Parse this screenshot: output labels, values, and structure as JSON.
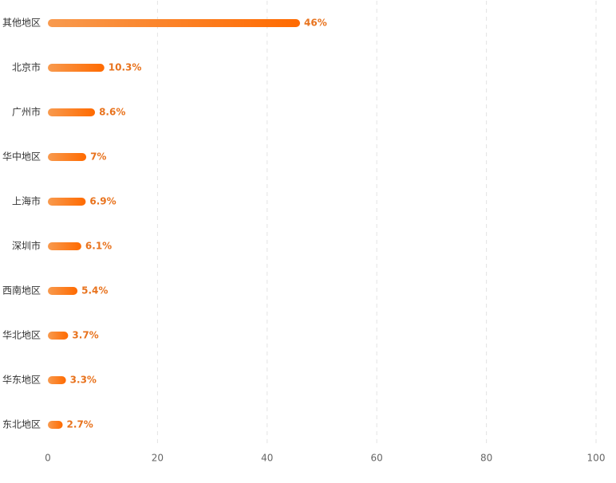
{
  "chart_data": {
    "type": "hbar",
    "categories": [
      "其他地区",
      "北京市",
      "广州市",
      "华中地区",
      "上海市",
      "深圳市",
      "西南地区",
      "华北地区",
      "华东地区",
      "东北地区"
    ],
    "values": [
      46,
      10.3,
      8.6,
      7,
      6.9,
      6.1,
      5.4,
      3.7,
      3.3,
      2.7
    ],
    "value_labels": [
      "46%",
      "10.3%",
      "8.6%",
      "7%",
      "6.9%",
      "6.1%",
      "5.4%",
      "3.7%",
      "3.3%",
      "2.7%"
    ],
    "colors": [
      "#f89a4e",
      "#ff6a00"
    ],
    "xlim": [
      0,
      100
    ],
    "xticks": [
      0,
      20,
      40,
      60,
      80,
      100
    ],
    "grid": true
  }
}
